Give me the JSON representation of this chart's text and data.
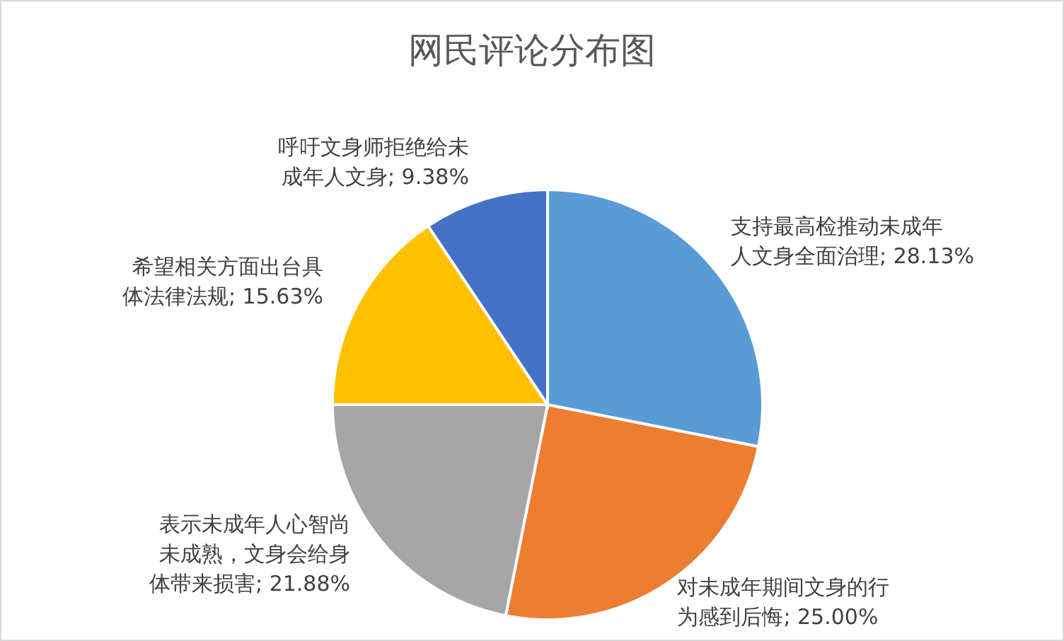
{
  "chart_data": {
    "type": "pie",
    "title": "网民评论分布图",
    "categories": [
      "支持最高检推动未成年人文身全面治理",
      "对未成年期间文身的行为感到后悔",
      "表示未成年人心智尚未成熟，文身会给身体带来损害",
      "希望相关方面出台具体法律法规",
      "呼吁文身师拒绝给未成年人文身"
    ],
    "values": [
      28.13,
      25.0,
      21.88,
      15.63,
      9.38
    ],
    "value_labels": [
      "28.13%",
      "25.00%",
      "21.88%",
      "15.63%",
      "9.38%"
    ],
    "colors": [
      "#5b9bd5",
      "#ed7d31",
      "#a5a5a5",
      "#ffc000",
      "#4472c4"
    ],
    "legend": false
  }
}
